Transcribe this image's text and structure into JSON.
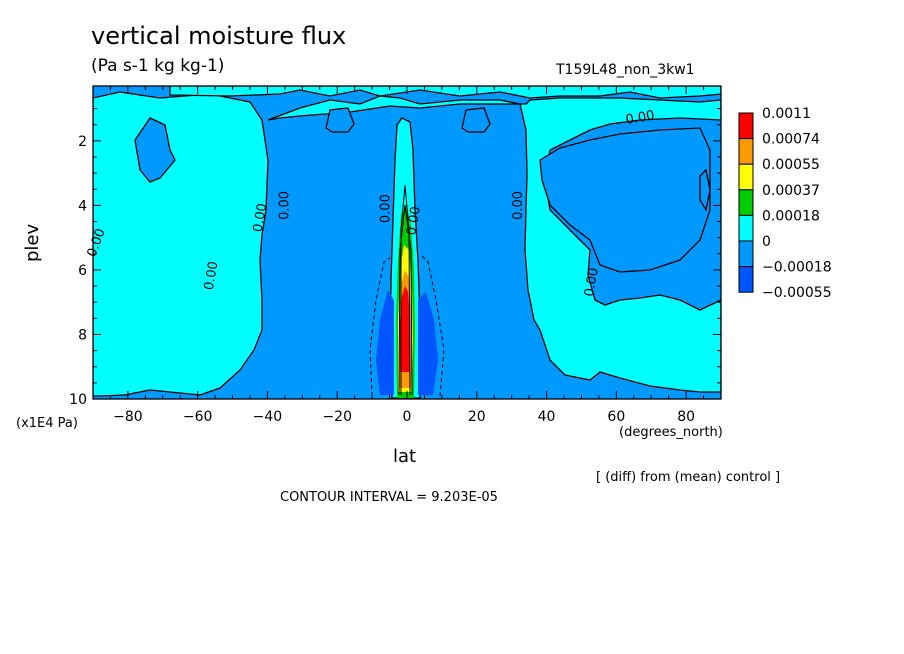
{
  "chart_data": {
    "type": "heatmap",
    "title": "vertical moisture flux",
    "units": "(Pa s-1 kg kg-1)",
    "run_id": "T159L48_non_3kw1",
    "xlabel": "lat",
    "x_unit": "(degrees_north)",
    "ylabel": "plev",
    "y_unit": "(x1E4 Pa)",
    "xlim": [
      -90,
      90
    ],
    "ylim": [
      10,
      0.3
    ],
    "x_ticks": [
      -80,
      -60,
      -40,
      -20,
      0,
      20,
      40,
      60,
      80
    ],
    "y_ticks": [
      2,
      4,
      6,
      8,
      10
    ],
    "colorbar": {
      "levels": [
        "0.0011",
        "0.00074",
        "0.00055",
        "0.00037",
        "0.00018",
        "0",
        "−0.00018",
        "−0.00055"
      ],
      "colors": [
        "#ff0000",
        "#ff9900",
        "#ffff00",
        "#00cc00",
        "#00ffff",
        "#0099ff",
        "#0055ff"
      ]
    },
    "contour_labels": [
      "0.00",
      "0.00",
      "0.00",
      "0.00",
      "0.00",
      "0.00",
      "0.00",
      "0.00",
      "0.00"
    ],
    "footnote": "[ (diff) from (mean) control ]",
    "contour_interval": "CONTOUR INTERVAL = 9.203E-05"
  }
}
